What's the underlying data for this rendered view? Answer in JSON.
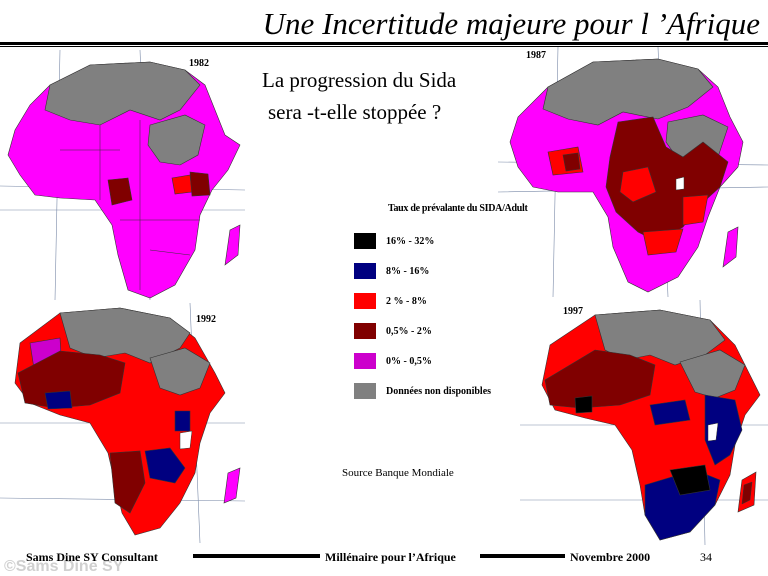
{
  "title": "Une Incertitude majeure pour l ’Afrique",
  "question": [
    "La progression du Sida",
    "sera -t-elle stoppée ?"
  ],
  "maps": [
    {
      "year": "1982"
    },
    {
      "year": "1987"
    },
    {
      "year": "1992"
    },
    {
      "year": "1997"
    }
  ],
  "legend": {
    "title": "Taux de prévalante du SIDA/Adult",
    "items": [
      {
        "label": "16% - 32%",
        "color": "#000000"
      },
      {
        "label": "8% -  16%",
        "color": "#000080"
      },
      {
        "label": "2 % - 8%",
        "color": "#ff0000"
      },
      {
        "label": "0,5% - 2%",
        "color": "#800000"
      },
      {
        "label": "0% - 0,5%",
        "color": "#cc00cc"
      },
      {
        "label": "Données non disponibles",
        "color": "#808080"
      }
    ]
  },
  "source": "Source Banque Mondiale",
  "footer": {
    "left": "Sams Dine SY Consultant",
    "center": "Millénaire pour l’Afrique",
    "right": "Novembre 2000",
    "page": "34",
    "watermark": "©Sams Dine SY"
  },
  "colors": {
    "magenta": "#ff00ff",
    "gray": "#808080",
    "red": "#ff0000",
    "maroon": "#800000",
    "navy": "#000080",
    "black": "#000000",
    "sea": "#ffffff"
  }
}
